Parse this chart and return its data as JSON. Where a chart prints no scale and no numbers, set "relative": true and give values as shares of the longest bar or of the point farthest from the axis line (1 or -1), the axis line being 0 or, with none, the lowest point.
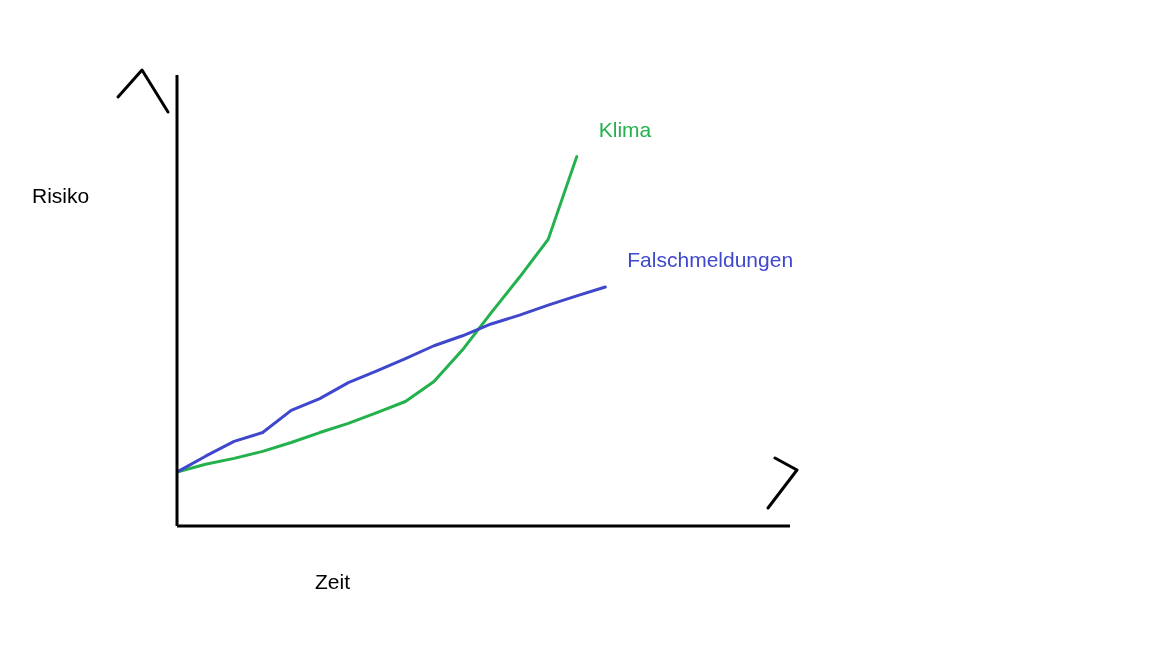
{
  "chart_data": {
    "type": "line",
    "relative": true,
    "xlabel": "Zeit",
    "ylabel": "Risiko",
    "categories": [
      null,
      null,
      null,
      null,
      null,
      null,
      null,
      null,
      null,
      null,
      null,
      null,
      null,
      null,
      null,
      null
    ],
    "legend": false,
    "grid": false,
    "marker": "none",
    "line_style": "solid",
    "series": [
      {
        "name": "Klima",
        "color": "#22b14c",
        "values": [
          0.146,
          0.167,
          0.183,
          0.202,
          0.226,
          0.253,
          0.278,
          0.307,
          0.337,
          0.391,
          0.477,
          0.577,
          0.674,
          0.776,
          1,
          null
        ]
      },
      {
        "name": "Falschmeldungen",
        "color": "#3f48cc",
        "values": [
          0.146,
          0.189,
          0.229,
          0.253,
          0.313,
          0.345,
          0.388,
          0.42,
          0.453,
          0.488,
          0.515,
          0.547,
          0.571,
          0.598,
          0.623,
          0.647
        ]
      }
    ]
  }
}
